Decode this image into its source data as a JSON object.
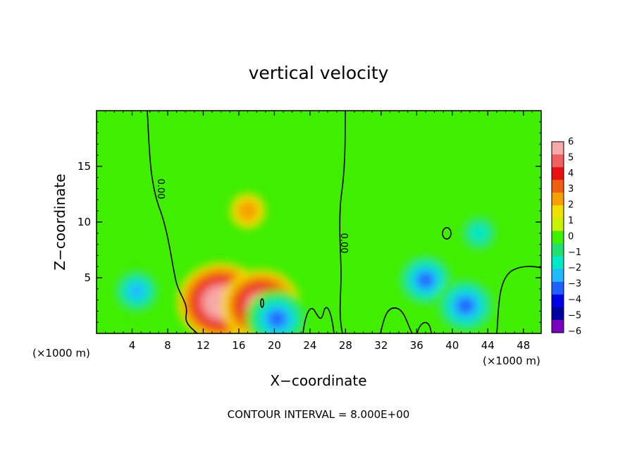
{
  "chart_data": {
    "type": "heatmap",
    "title": "vertical velocity",
    "xlabel": "X−coordinate",
    "ylabel": "Z−coordinate",
    "x_unit_left": "(×1000 m)",
    "x_unit_right": "(×1000 m)",
    "footer": "CONTOUR INTERVAL = 8.000E+00",
    "xlim": [
      0,
      50
    ],
    "ylim": [
      0,
      20
    ],
    "x_ticks": [
      "4",
      "8",
      "12",
      "16",
      "20",
      "24",
      "28",
      "32",
      "36",
      "40",
      "44",
      "48"
    ],
    "y_ticks": [
      "5",
      "10",
      "15"
    ],
    "contour_label": "0.00",
    "colorbar": {
      "labels": [
        "6",
        "5",
        "4",
        "3",
        "2",
        "1",
        "0",
        "−1",
        "−2",
        "−3",
        "−4",
        "−5",
        "−6"
      ],
      "colors": [
        "#f7a8a8",
        "#f06060",
        "#e81010",
        "#f06010",
        "#f5a000",
        "#f0e000",
        "#c8f000",
        "#40ee00",
        "#20e070",
        "#00e8c8",
        "#20b8ff",
        "#2060ff",
        "#0000e8",
        "#0000a0",
        "#7a00c0"
      ]
    },
    "features": [
      {
        "label": "updraft core 1",
        "x": 14.0,
        "z": 2.8,
        "w": 8.0
      },
      {
        "label": "updraft core 2",
        "x": 18.5,
        "z": 2.5,
        "w": 7.0
      },
      {
        "label": "upper updraft plume",
        "x": 17.0,
        "z": 11.0,
        "w": 1.8
      },
      {
        "label": "left downdraft",
        "x": 4.5,
        "z": 3.8,
        "w": -3.5
      },
      {
        "label": "right downdraft",
        "x": 37.0,
        "z": 4.8,
        "w": -4.5
      },
      {
        "label": "right low downdraft",
        "x": 41.5,
        "z": 2.5,
        "w": -5.0
      },
      {
        "label": "small downdraft",
        "x": 20.3,
        "z": 1.3,
        "w": -5.0
      },
      {
        "label": "upper right downdraft",
        "x": 43.0,
        "z": 9.0,
        "w": -2.5
      }
    ]
  }
}
